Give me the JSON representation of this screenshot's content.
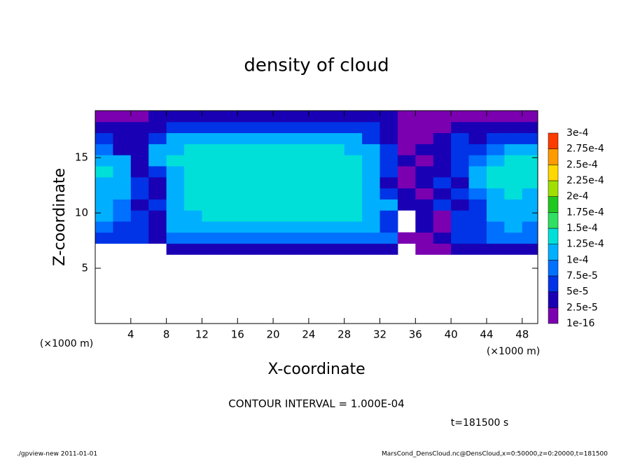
{
  "chart_data": {
    "type": "heatmap",
    "title": "density of cloud",
    "xlabel": "X-coordinate",
    "ylabel": "Z-coordinate",
    "xunit": "(×1000 m)",
    "yunit": "(×1000 m)",
    "contour_note": "CONTOUR INTERVAL = 1.000E-04",
    "time_label": "t=181500 s",
    "footer_left": "./gpview-new  2011-01-01",
    "footer_right": "MarsCond_DensCloud.nc@DensCloud,x=0:50000,z=0:20000,t=181500",
    "xlim": [
      0,
      49.75
    ],
    "ylim": [
      0,
      19.25
    ],
    "xticks": [
      4,
      8,
      12,
      16,
      20,
      24,
      28,
      32,
      36,
      40,
      44,
      48
    ],
    "yticks": [
      5,
      10,
      15
    ],
    "x": [
      1,
      3,
      5,
      7,
      9,
      11,
      13,
      15,
      17,
      19,
      21,
      23,
      25,
      27,
      29,
      31,
      33,
      35,
      37,
      39,
      41,
      43,
      45,
      47,
      49
    ],
    "y": [
      6.75,
      7.75,
      8.75,
      9.75,
      10.75,
      11.75,
      12.75,
      13.75,
      14.75,
      15.75,
      16.75,
      17.75,
      18.75
    ],
    "values": [
      [
        null,
        null,
        null,
        null,
        3e-05,
        3e-05,
        3e-05,
        3e-05,
        3e-05,
        3e-05,
        3e-05,
        3e-05,
        3e-05,
        3e-05,
        3e-05,
        3e-05,
        3e-05,
        null,
        1e-05,
        1e-05,
        3e-05,
        3e-05,
        3e-05,
        3e-05,
        3e-05
      ],
      [
        6e-05,
        6e-05,
        6e-05,
        3e-05,
        8e-05,
        8e-05,
        8e-05,
        8e-05,
        8e-05,
        8e-05,
        8e-05,
        8e-05,
        8e-05,
        8e-05,
        8e-05,
        8e-05,
        8e-05,
        1e-05,
        1e-05,
        3e-05,
        6e-05,
        6e-05,
        8e-05,
        8e-05,
        8e-05
      ],
      [
        8e-05,
        6e-05,
        6e-05,
        3e-05,
        0.00011,
        0.00011,
        0.00011,
        0.00011,
        0.00011,
        0.00011,
        0.00011,
        0.00011,
        0.00011,
        0.00011,
        0.00011,
        0.00011,
        6e-05,
        null,
        3e-05,
        1e-05,
        6e-05,
        6e-05,
        8e-05,
        0.00011,
        8e-05
      ],
      [
        0.00011,
        8e-05,
        6e-05,
        3e-05,
        0.00011,
        0.00011,
        0.000135,
        0.000135,
        0.000135,
        0.000135,
        0.000135,
        0.000135,
        0.000135,
        0.000135,
        0.000135,
        0.00011,
        6e-05,
        null,
        3e-05,
        1e-05,
        6e-05,
        6e-05,
        0.00011,
        0.00011,
        0.00011
      ],
      [
        0.00011,
        8e-05,
        3e-05,
        6e-05,
        0.00011,
        0.000135,
        0.000135,
        0.000135,
        0.000135,
        0.000135,
        0.000135,
        0.000135,
        0.000135,
        0.000135,
        0.000135,
        0.00011,
        0.00011,
        3e-05,
        3e-05,
        6e-05,
        3e-05,
        6e-05,
        0.00011,
        0.00011,
        0.00011
      ],
      [
        0.00011,
        0.00011,
        6e-05,
        3e-05,
        0.00011,
        0.000135,
        0.000135,
        0.000135,
        0.000135,
        0.000135,
        0.000135,
        0.000135,
        0.000135,
        0.000135,
        0.000135,
        0.00011,
        6e-05,
        3e-05,
        1e-05,
        3e-05,
        6e-05,
        8e-05,
        0.00011,
        0.000135,
        0.00011
      ],
      [
        0.00011,
        0.00011,
        6e-05,
        3e-05,
        0.00011,
        0.000135,
        0.000135,
        0.000135,
        0.000135,
        0.000135,
        0.000135,
        0.000135,
        0.000135,
        0.000135,
        0.000135,
        0.00011,
        3e-05,
        1e-05,
        3e-05,
        6e-05,
        3e-05,
        0.00011,
        0.000135,
        0.000135,
        0.000135
      ],
      [
        0.000135,
        0.00011,
        3e-05,
        6e-05,
        0.00011,
        0.000135,
        0.000135,
        0.000135,
        0.000135,
        0.000135,
        0.000135,
        0.000135,
        0.000135,
        0.000135,
        0.000135,
        0.00011,
        6e-05,
        1e-05,
        3e-05,
        3e-05,
        6e-05,
        0.00011,
        0.000135,
        0.000135,
        0.000135
      ],
      [
        0.00011,
        0.00011,
        3e-05,
        0.00011,
        0.000135,
        0.000135,
        0.000135,
        0.000135,
        0.000135,
        0.000135,
        0.000135,
        0.000135,
        0.000135,
        0.000135,
        0.000135,
        0.00011,
        6e-05,
        3e-05,
        1e-05,
        3e-05,
        6e-05,
        8e-05,
        0.00011,
        0.000135,
        0.000135
      ],
      [
        8e-05,
        3e-05,
        3e-05,
        0.00011,
        0.00011,
        0.000135,
        0.000135,
        0.000135,
        0.000135,
        0.000135,
        0.000135,
        0.000135,
        0.000135,
        0.000135,
        0.00011,
        0.00011,
        6e-05,
        1e-05,
        3e-05,
        3e-05,
        6e-05,
        6e-05,
        8e-05,
        0.00011,
        0.00011
      ],
      [
        6e-05,
        3e-05,
        3e-05,
        6e-05,
        0.00011,
        0.00011,
        0.00011,
        0.00011,
        0.00011,
        0.00011,
        0.00011,
        0.00011,
        0.00011,
        0.00011,
        0.00011,
        6e-05,
        3e-05,
        1e-05,
        1e-05,
        3e-05,
        6e-05,
        3e-05,
        6e-05,
        6e-05,
        6e-05
      ],
      [
        3e-05,
        3e-05,
        3e-05,
        3e-05,
        6e-05,
        6e-05,
        6e-05,
        6e-05,
        6e-05,
        6e-05,
        6e-05,
        6e-05,
        6e-05,
        6e-05,
        6e-05,
        6e-05,
        3e-05,
        1e-05,
        1e-05,
        1e-05,
        3e-05,
        3e-05,
        3e-05,
        3e-05,
        3e-05
      ],
      [
        1e-05,
        1e-05,
        1e-05,
        3e-05,
        3e-05,
        3e-05,
        3e-05,
        3e-05,
        3e-05,
        3e-05,
        3e-05,
        3e-05,
        3e-05,
        3e-05,
        3e-05,
        3e-05,
        3e-05,
        1e-05,
        1e-05,
        1e-05,
        1e-05,
        1e-05,
        1e-05,
        1e-05,
        1e-05
      ]
    ],
    "levels": [
      {
        "value": 1e-16,
        "label": "1e-16"
      },
      {
        "value": 2.5e-05,
        "label": "2.5e-5"
      },
      {
        "value": 5e-05,
        "label": "5e-5"
      },
      {
        "value": 7.5e-05,
        "label": "7.5e-5"
      },
      {
        "value": 0.0001,
        "label": "1e-4"
      },
      {
        "value": 0.000125,
        "label": "1.25e-4"
      },
      {
        "value": 0.00015,
        "label": "1.5e-4"
      },
      {
        "value": 0.000175,
        "label": "1.75e-4"
      },
      {
        "value": 0.0002,
        "label": "2e-4"
      },
      {
        "value": 0.000225,
        "label": "2.25e-4"
      },
      {
        "value": 0.00025,
        "label": "2.5e-4"
      },
      {
        "value": 0.000275,
        "label": "2.75e-4"
      },
      {
        "value": 0.0003,
        "label": "3e-4"
      }
    ],
    "colors": [
      "#7a00b0",
      "#1a00b4",
      "#0034e6",
      "#0070ff",
      "#00b0ff",
      "#00e0d8",
      "#30e060",
      "#20c820",
      "#a0e000",
      "#ffd800",
      "#ff9a00",
      "#ff3c00",
      "#ff8080"
    ]
  }
}
